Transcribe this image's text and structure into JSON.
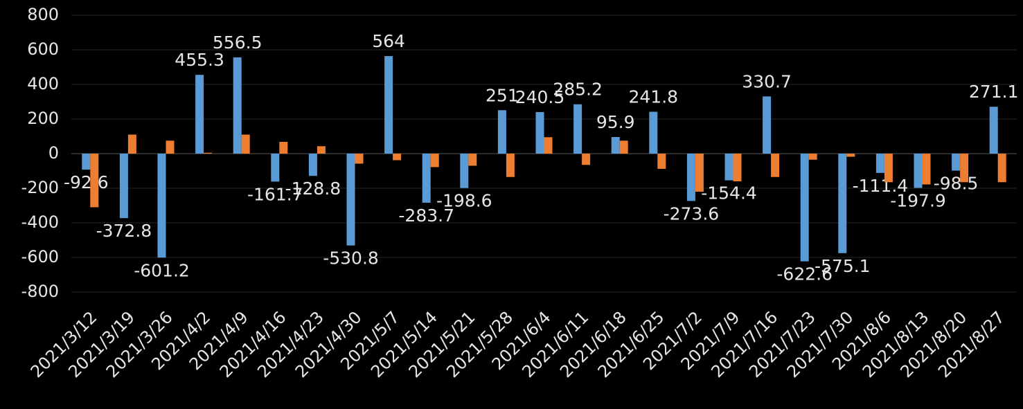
{
  "chart_data": {
    "type": "bar",
    "categories": [
      "2021/3/12",
      "2021/3/19",
      "2021/3/26",
      "2021/4/2",
      "2021/4/9",
      "2021/4/16",
      "2021/4/23",
      "2021/4/30",
      "2021/5/7",
      "2021/5/14",
      "2021/5/21",
      "2021/5/28",
      "2021/6/4",
      "2021/6/11",
      "2021/6/18",
      "2021/6/25",
      "2021/7/2",
      "2021/7/9",
      "2021/7/16",
      "2021/7/23",
      "2021/7/30",
      "2021/8/6",
      "2021/8/13",
      "2021/8/20",
      "2021/8/27"
    ],
    "series": [
      {
        "color": "#5b9bd5",
        "data_labels": true,
        "values": [
          -92.6,
          -372.8,
          -601.2,
          455.3,
          556.5,
          -161.7,
          -128.8,
          -530.8,
          564,
          -283.7,
          -198.6,
          251,
          240.5,
          285.2,
          95.9,
          241.8,
          -273.6,
          -154.4,
          330.7,
          -622.6,
          -575.1,
          -111.4,
          -197.9,
          -98.5,
          271.1
        ]
      },
      {
        "color": "#ed7d31",
        "data_labels": false,
        "values": [
          -310,
          110,
          75,
          5,
          110,
          68,
          43,
          -58,
          -38,
          -78,
          -70,
          -135,
          95,
          -65,
          75,
          -88,
          -220,
          -160,
          -135,
          -35,
          -18,
          -165,
          -178,
          -165,
          -165
        ]
      }
    ],
    "ylim": [
      -800,
      800
    ],
    "yticks": [
      -800,
      -600,
      -400,
      -200,
      0,
      200,
      400,
      600,
      800
    ],
    "grid": true
  }
}
